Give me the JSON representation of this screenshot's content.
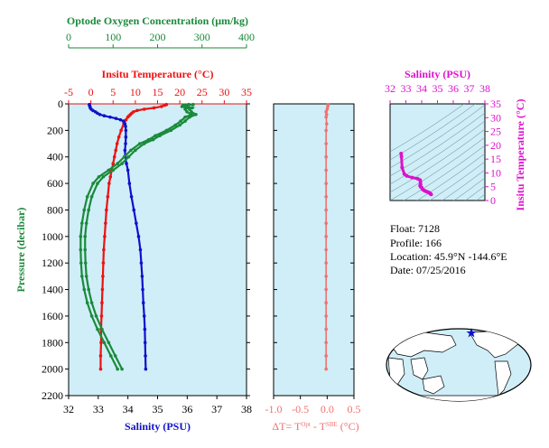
{
  "float_info": {
    "float": "Float:  7128",
    "profile": "Profile:  166",
    "location": "Location:  45.9°N  -144.6°E",
    "date": "Date:  07/25/2016"
  },
  "colors": {
    "panel_bg": "#cfeef8",
    "oxygen": "#1a8a3a",
    "temperature": "#ee1111",
    "salinity": "#1010cc",
    "delta_t": "#f07070",
    "ts": "#dd11cc"
  },
  "chart_data": [
    {
      "type": "line",
      "name": "profile",
      "ylabel": "Pressure (decibar)",
      "ylim": [
        2200,
        0
      ],
      "yticks": [
        "0",
        "200",
        "400",
        "600",
        "800",
        "1000",
        "1200",
        "1400",
        "1600",
        "1800",
        "2000",
        "2200"
      ],
      "grid": false,
      "axes": {
        "oxygen": {
          "label": "Optode Oxygen Concentration (μm/kg)",
          "lim": [
            0,
            400
          ],
          "ticks": [
            "0",
            "100",
            "200",
            "300",
            "400"
          ],
          "position": "top"
        },
        "temperature": {
          "label": "Insitu Temperature (°C)",
          "lim": [
            -5,
            35
          ],
          "ticks": [
            "-5",
            "0",
            "5",
            "10",
            "15",
            "20",
            "25",
            "30",
            "35"
          ],
          "position": "top"
        },
        "salinity": {
          "label": "Salinity (PSU)",
          "lim": [
            32,
            38
          ],
          "ticks": [
            "32",
            "33",
            "34",
            "35",
            "36",
            "37",
            "38"
          ],
          "position": "bottom"
        }
      },
      "series": [
        {
          "axis": "temperature",
          "pressure": [
            5,
            10,
            20,
            30,
            40,
            50,
            60,
            70,
            80,
            90,
            100,
            120,
            150,
            200,
            250,
            300,
            350,
            400,
            450,
            500,
            550,
            600,
            700,
            800,
            900,
            1000,
            1100,
            1200,
            1300,
            1400,
            1500,
            1600,
            1700,
            1800,
            1900,
            2000
          ],
          "values": [
            17.0,
            16.6,
            15.9,
            14.2,
            12.0,
            10.4,
            9.6,
            9.2,
            8.9,
            8.6,
            8.3,
            7.9,
            7.4,
            6.8,
            6.3,
            5.9,
            5.6,
            5.3,
            5.0,
            4.7,
            4.4,
            4.1,
            3.8,
            3.5,
            3.3,
            3.1,
            2.9,
            2.8,
            2.7,
            2.6,
            2.5,
            2.4,
            2.3,
            2.3,
            2.2,
            2.2
          ]
        },
        {
          "axis": "salinity",
          "pressure": [
            5,
            10,
            20,
            30,
            40,
            50,
            60,
            70,
            80,
            90,
            100,
            110,
            120,
            130,
            150,
            170,
            200,
            250,
            300,
            350,
            400,
            450,
            500,
            600,
            700,
            800,
            900,
            1000,
            1100,
            1200,
            1300,
            1400,
            1500,
            1600,
            1700,
            1800,
            1900,
            2000
          ],
          "values": [
            32.7,
            32.7,
            32.72,
            32.73,
            32.76,
            32.82,
            32.9,
            32.97,
            33.05,
            33.2,
            33.4,
            33.6,
            33.75,
            33.85,
            33.9,
            33.92,
            33.93,
            33.93,
            33.92,
            33.9,
            33.91,
            33.95,
            34.0,
            34.05,
            34.12,
            34.2,
            34.28,
            34.36,
            34.42,
            34.45,
            34.48,
            34.5,
            34.52,
            34.55,
            34.57,
            34.58,
            34.59,
            34.6
          ]
        },
        {
          "axis": "oxygen",
          "pressure": [
            5,
            10,
            20,
            30,
            40,
            60,
            80,
            100,
            130,
            160,
            200,
            240,
            270,
            300,
            350,
            400,
            450,
            500,
            550,
            600,
            700,
            800,
            900,
            1000,
            1100,
            1200,
            1300,
            1400,
            1500,
            1600,
            1700,
            1800,
            1900,
            2000
          ],
          "values": [
            280,
            268,
            262,
            278,
            272,
            276,
            286,
            272,
            262,
            250,
            230,
            205,
            190,
            170,
            150,
            135,
            120,
            100,
            78,
            65,
            52,
            45,
            40,
            37,
            37,
            38,
            40,
            45,
            52,
            62,
            75,
            90,
            105,
            120
          ]
        },
        {
          "axis": "oxygen",
          "pressure": [
            5,
            10,
            20,
            30,
            40,
            60,
            80,
            100,
            130,
            160,
            200,
            240,
            270,
            300,
            350,
            400,
            450,
            500,
            550,
            600,
            700,
            800,
            900,
            1000,
            1100,
            1200,
            1300,
            1400,
            1500,
            1600,
            1700,
            1800,
            1900,
            2000
          ],
          "values": [
            270,
            258,
            255,
            268,
            262,
            266,
            276,
            262,
            252,
            240,
            220,
            195,
            180,
            160,
            140,
            125,
            110,
            90,
            68,
            55,
            42,
            35,
            30,
            27,
            27,
            28,
            30,
            35,
            42,
            52,
            65,
            80,
            95,
            110
          ]
        }
      ]
    },
    {
      "type": "line",
      "name": "delta-t",
      "xlabel": "ΔT= T^Opt - T^SBE (°C)",
      "xlim": [
        -1.0,
        0.5
      ],
      "xticks": [
        "-1.0",
        "-0.5",
        "0.0",
        "0.5"
      ],
      "ylim": [
        2200,
        0
      ],
      "pressure": [
        5,
        20,
        40,
        60,
        80,
        100,
        150,
        200,
        300,
        400,
        500,
        600,
        700,
        800,
        900,
        1000,
        1100,
        1200,
        1300,
        1400,
        1500,
        1600,
        1700,
        1800,
        1900,
        2000
      ],
      "values": [
        0.02,
        0.01,
        0.0,
        -0.02,
        -0.01,
        -0.02,
        -0.01,
        -0.02,
        -0.02,
        -0.02,
        -0.02,
        -0.02,
        -0.02,
        -0.02,
        -0.02,
        -0.02,
        -0.02,
        -0.02,
        -0.02,
        -0.02,
        -0.02,
        -0.02,
        -0.02,
        -0.02,
        -0.02,
        -0.02
      ]
    },
    {
      "type": "scatter",
      "name": "ts-diagram",
      "xlabel": "Salinity (PSU)",
      "ylabel": "Insitu Temperature (°C)",
      "xlim": [
        32,
        38
      ],
      "ylim": [
        0,
        35
      ],
      "xticks": [
        "32",
        "33",
        "34",
        "35",
        "36",
        "37",
        "38"
      ],
      "yticks": [
        "0",
        "5",
        "10",
        "15",
        "20",
        "25",
        "30",
        "35"
      ],
      "salinity": [
        32.7,
        32.72,
        32.76,
        32.9,
        33.05,
        33.4,
        33.75,
        33.9,
        33.92,
        33.93,
        33.92,
        33.9,
        33.93,
        34.0,
        34.05,
        34.12,
        34.2,
        34.28,
        34.36,
        34.45,
        34.5,
        34.55,
        34.58,
        34.6
      ],
      "temperature": [
        17.0,
        15.9,
        12.0,
        9.6,
        8.9,
        8.3,
        7.9,
        7.4,
        6.8,
        5.9,
        5.6,
        5.3,
        5.0,
        4.7,
        4.1,
        3.8,
        3.5,
        3.3,
        3.1,
        2.9,
        2.7,
        2.5,
        2.3,
        2.2
      ]
    }
  ]
}
